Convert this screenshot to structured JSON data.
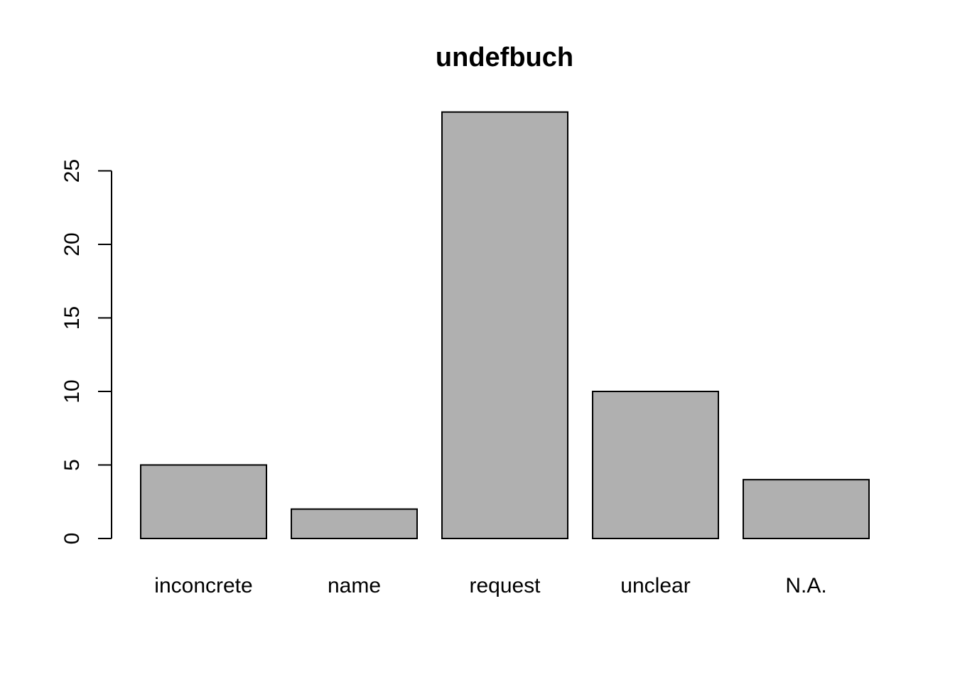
{
  "chart_data": {
    "type": "bar",
    "title": "undefbuch",
    "xlabel": "",
    "ylabel": "",
    "categories": [
      "inconcrete",
      "name",
      "request",
      "unclear",
      "N.A."
    ],
    "values": [
      5,
      2,
      29,
      10,
      4
    ],
    "y_ticks": [
      "0",
      "5",
      "10",
      "15",
      "20",
      "25"
    ],
    "ylim": [
      0,
      29
    ],
    "bar_color": "#b0b0b0",
    "grid": false,
    "legend": "none"
  }
}
